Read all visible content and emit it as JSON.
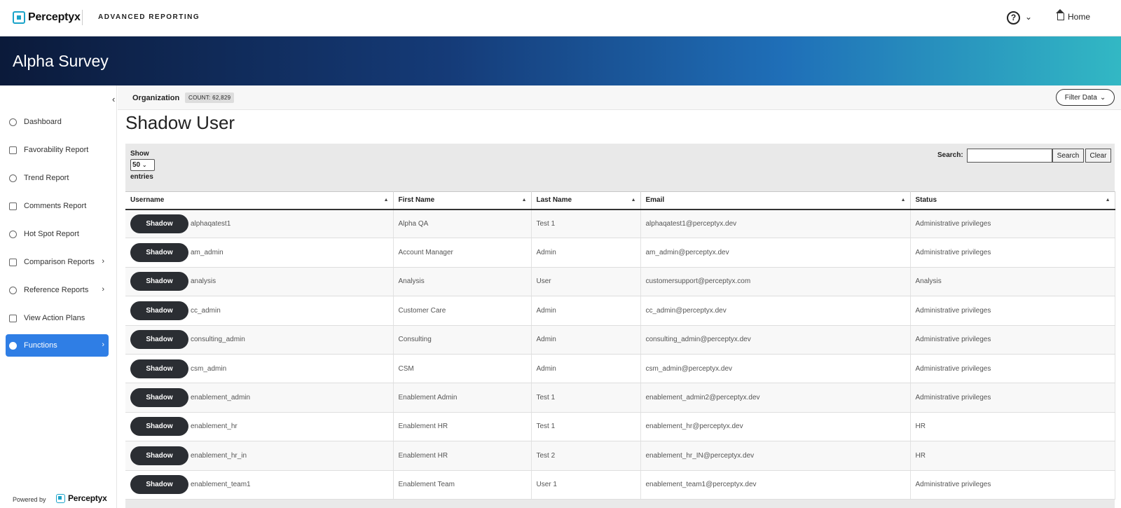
{
  "topbar": {
    "brand": "Perceptyx",
    "product": "ADVANCED REPORTING",
    "help_symbol": "?",
    "home_label": "Home"
  },
  "banner": {
    "title": "Alpha Survey"
  },
  "sidebar": {
    "items": [
      {
        "label": "Dashboard",
        "icon": "gauge-icon",
        "has_chevron": false
      },
      {
        "label": "Favorability Report",
        "icon": "thumbs-up-icon",
        "has_chevron": false
      },
      {
        "label": "Trend Report",
        "icon": "line-chart-icon",
        "has_chevron": false
      },
      {
        "label": "Comments Report",
        "icon": "comments-icon",
        "has_chevron": false
      },
      {
        "label": "Hot Spot Report",
        "icon": "target-icon",
        "has_chevron": false
      },
      {
        "label": "Comparison Reports",
        "icon": "scale-icon",
        "has_chevron": true
      },
      {
        "label": "Reference Reports",
        "icon": "bar-chart-icon",
        "has_chevron": true
      },
      {
        "label": "View Action Plans",
        "icon": "check-circle-icon",
        "has_chevron": false
      },
      {
        "label": "Functions",
        "icon": "gear-icon",
        "has_chevron": true,
        "active": true
      }
    ],
    "powered_by": "Powered by",
    "powered_brand": "Perceptyx"
  },
  "orgbar": {
    "label": "Organization",
    "count": "COUNT: 62,829",
    "filter_label": "Filter Data"
  },
  "page": {
    "title": "Shadow User"
  },
  "table_controls": {
    "show_label": "Show",
    "page_size": "50",
    "entries_label": "entries",
    "search_label": "Search:",
    "search_value": "",
    "search_button": "Search",
    "clear_button": "Clear"
  },
  "table": {
    "columns": [
      "Username",
      "First Name",
      "Last Name",
      "Email",
      "Status"
    ],
    "shadow_label": "Shadow",
    "rows": [
      {
        "username": "alphaqatest1",
        "first": "Alpha QA",
        "last": "Test 1",
        "email": "alphaqatest1@perceptyx.dev",
        "status": "Administrative privileges"
      },
      {
        "username": "am_admin",
        "first": "Account Manager",
        "last": "Admin",
        "email": "am_admin@perceptyx.dev",
        "status": "Administrative privileges"
      },
      {
        "username": "analysis",
        "first": "Analysis",
        "last": "User",
        "email": "customersupport@perceptyx.com",
        "status": "Analysis"
      },
      {
        "username": "cc_admin",
        "first": "Customer Care",
        "last": "Admin",
        "email": "cc_admin@perceptyx.dev",
        "status": "Administrative privileges"
      },
      {
        "username": "consulting_admin",
        "first": "Consulting",
        "last": "Admin",
        "email": "consulting_admin@perceptyx.dev",
        "status": "Administrative privileges"
      },
      {
        "username": "csm_admin",
        "first": "CSM",
        "last": "Admin",
        "email": "csm_admin@perceptyx.dev",
        "status": "Administrative privileges"
      },
      {
        "username": "enablement_admin",
        "first": "Enablement Admin",
        "last": "Test 1",
        "email": "enablement_admin2@perceptyx.dev",
        "status": "Administrative privileges"
      },
      {
        "username": "enablement_hr",
        "first": "Enablement HR",
        "last": "Test 1",
        "email": "enablement_hr@perceptyx.dev",
        "status": "HR"
      },
      {
        "username": "enablement_hr_in",
        "first": "Enablement HR",
        "last": "Test 2",
        "email": "enablement_hr_IN@perceptyx.dev",
        "status": "HR"
      },
      {
        "username": "enablement_team1",
        "first": "Enablement Team",
        "last": "User 1",
        "email": "enablement_team1@perceptyx.dev",
        "status": "Administrative privileges"
      }
    ]
  }
}
